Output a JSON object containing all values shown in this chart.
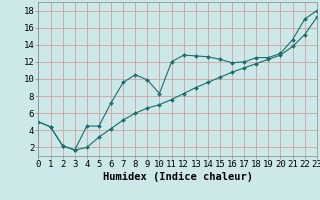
{
  "xlabel": "Humidex (Indice chaleur)",
  "background_color": "#cde8e8",
  "grid_color": "#d4a0a0",
  "line_color": "#1a6e6e",
  "marker_color": "#1a6e6e",
  "x_min": 0,
  "x_max": 23,
  "y_min": 1,
  "y_max": 19,
  "series1_x": [
    0,
    1,
    2,
    3,
    4,
    5,
    6,
    7,
    8,
    9,
    10,
    11,
    12,
    13,
    14,
    15,
    16,
    17,
    18,
    19,
    20,
    21,
    22,
    23
  ],
  "series1_y": [
    5.0,
    4.4,
    2.2,
    1.7,
    4.5,
    4.5,
    7.2,
    9.6,
    10.5,
    9.9,
    8.3,
    12.0,
    12.8,
    12.7,
    12.6,
    12.3,
    11.9,
    12.0,
    12.5,
    12.5,
    13.0,
    14.6,
    17.0,
    18.0
  ],
  "series2_x": [
    0,
    1,
    2,
    3,
    4,
    5,
    6,
    7,
    8,
    9,
    10,
    11,
    12,
    13,
    14,
    15,
    16,
    17,
    18,
    19,
    20,
    21,
    22,
    23
  ],
  "series2_y": [
    5.0,
    4.4,
    2.2,
    1.7,
    2.0,
    3.2,
    4.2,
    5.2,
    6.0,
    6.6,
    7.0,
    7.6,
    8.3,
    9.0,
    9.6,
    10.2,
    10.8,
    11.3,
    11.8,
    12.3,
    12.8,
    13.8,
    15.2,
    17.2
  ],
  "xtick_labels": [
    "0",
    "1",
    "2",
    "3",
    "4",
    "5",
    "6",
    "7",
    "8",
    "9",
    "10",
    "11",
    "12",
    "13",
    "14",
    "15",
    "16",
    "17",
    "18",
    "19",
    "20",
    "21",
    "22",
    "23"
  ],
  "ytick_values": [
    2,
    4,
    6,
    8,
    10,
    12,
    14,
    16,
    18
  ],
  "tick_fontsize": 6.5,
  "xlabel_fontsize": 7.5
}
